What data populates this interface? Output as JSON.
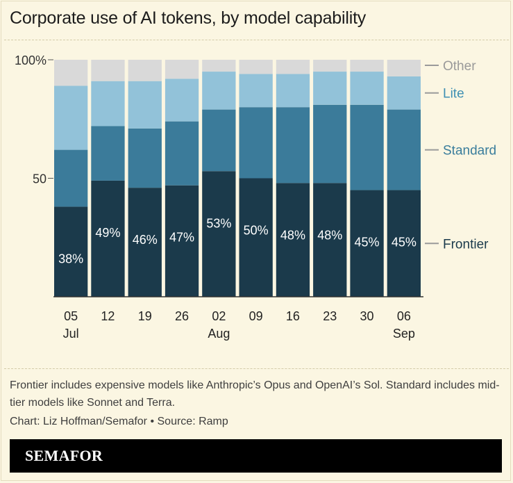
{
  "title": "Corporate use of AI tokens, by model capability",
  "note": "Frontier includes expensive models like Anthropic’s Opus and OpenAI’s Sol. Standard includes mid-tier models like Sonnet and Terra.",
  "credit": "Chart: Liz Hoffman/Semafor • Source: Ramp",
  "brand": "SEMAFOR",
  "chart_data": {
    "type": "bar",
    "stacked": true,
    "ylim": [
      0,
      100
    ],
    "y_ticks": [
      {
        "value": 100,
        "label": "100%"
      },
      {
        "value": 50,
        "label": "50"
      }
    ],
    "categories": [
      "05",
      "12",
      "19",
      "26",
      "02",
      "09",
      "16",
      "23",
      "30",
      "06"
    ],
    "month_labels": [
      "Jul",
      "",
      "",
      "",
      "Aug",
      "",
      "",
      "",
      "",
      "Sep"
    ],
    "series": [
      {
        "name": "Frontier",
        "color": "#1b3a4b",
        "values": [
          38,
          49,
          46,
          47,
          53,
          50,
          48,
          48,
          45,
          45
        ],
        "data_labels": [
          "38%",
          "49%",
          "46%",
          "47%",
          "53%",
          "50%",
          "48%",
          "48%",
          "45%",
          "45%"
        ]
      },
      {
        "name": "Standard",
        "color": "#3b7b9a",
        "values": [
          24,
          23,
          25,
          27,
          26,
          30,
          32,
          33,
          36,
          34
        ]
      },
      {
        "name": "Lite",
        "color": "#92c2d9",
        "values": [
          27,
          19,
          20,
          18,
          16,
          14,
          14,
          14,
          14,
          14
        ]
      },
      {
        "name": "Other",
        "color": "#d9d9d9",
        "values": [
          11,
          9,
          9,
          8,
          5,
          6,
          6,
          5,
          5,
          7
        ]
      }
    ],
    "legend": "right, inline with stacks",
    "grid": false
  }
}
